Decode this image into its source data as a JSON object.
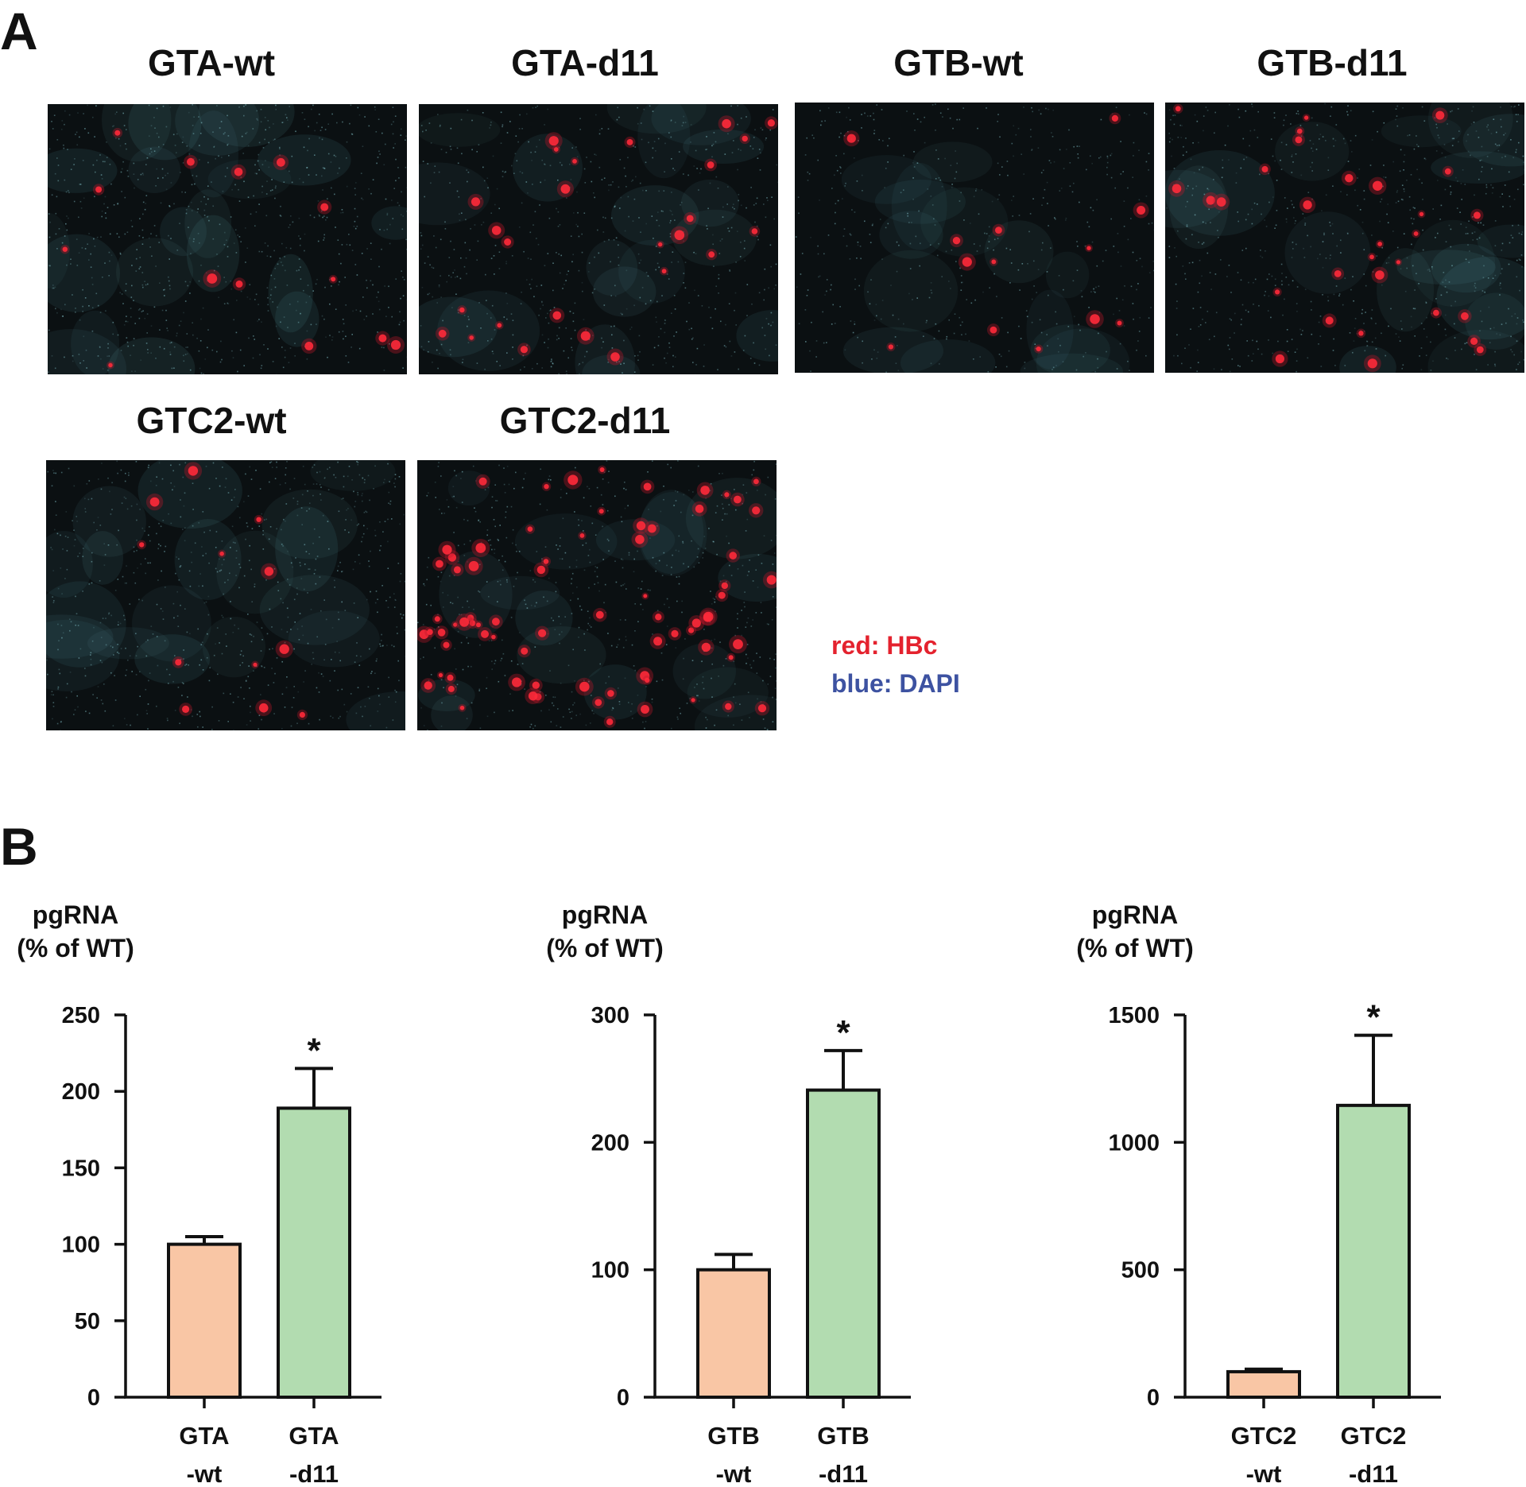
{
  "panels": {
    "a_label": "A",
    "b_label": "B"
  },
  "micrographs": [
    {
      "title": "GTA-wt",
      "red_spots": 14,
      "cyan_density": 0.75
    },
    {
      "title": "GTA-d11",
      "red_spots": 26,
      "cyan_density": 0.55
    },
    {
      "title": "GTB-wt",
      "red_spots": 13,
      "cyan_density": 0.35
    },
    {
      "title": "GTB-d11",
      "red_spots": 30,
      "cyan_density": 0.6
    },
    {
      "title": "GTC2-wt",
      "red_spots": 12,
      "cyan_density": 0.65
    },
    {
      "title": "GTC2-d11",
      "red_spots": 75,
      "cyan_density": 0.5
    }
  ],
  "legend": {
    "red_text": "red: HBc",
    "blue_text": "blue: DAPI",
    "red_color": "#e4222e",
    "blue_color": "#3d52a1"
  },
  "colors": {
    "wt_fill": "#f9c6a5",
    "d11_fill": "#b2dcb0",
    "axis": "#111111"
  },
  "chart_data": [
    {
      "type": "bar",
      "ylabel_line1": "pgRNA",
      "ylabel_line2": "(% of WT)",
      "ylim": [
        0,
        250
      ],
      "yticks": [
        0,
        50,
        100,
        150,
        200,
        250
      ],
      "categories": [
        {
          "line1": "GTA",
          "line2": "-wt"
        },
        {
          "line1": "GTA",
          "line2": "-d11"
        }
      ],
      "values": [
        100,
        189
      ],
      "errors": [
        5,
        26
      ],
      "significance": [
        "",
        "*"
      ]
    },
    {
      "type": "bar",
      "ylabel_line1": "pgRNA",
      "ylabel_line2": "(% of WT)",
      "ylim": [
        0,
        300
      ],
      "yticks": [
        0,
        100,
        200,
        300
      ],
      "categories": [
        {
          "line1": "GTB",
          "line2": "-wt"
        },
        {
          "line1": "GTB",
          "line2": "-d11"
        }
      ],
      "values": [
        100,
        241
      ],
      "errors": [
        12,
        31
      ],
      "significance": [
        "",
        "*"
      ]
    },
    {
      "type": "bar",
      "ylabel_line1": "pgRNA",
      "ylabel_line2": "(% of WT)",
      "ylim": [
        0,
        1500
      ],
      "yticks": [
        0,
        500,
        1000,
        1500
      ],
      "categories": [
        {
          "line1": "GTC2",
          "line2": "-wt"
        },
        {
          "line1": "GTC2",
          "line2": "-d11"
        }
      ],
      "values": [
        100,
        1145
      ],
      "errors": [
        10,
        275
      ],
      "significance": [
        "",
        "*"
      ]
    }
  ]
}
